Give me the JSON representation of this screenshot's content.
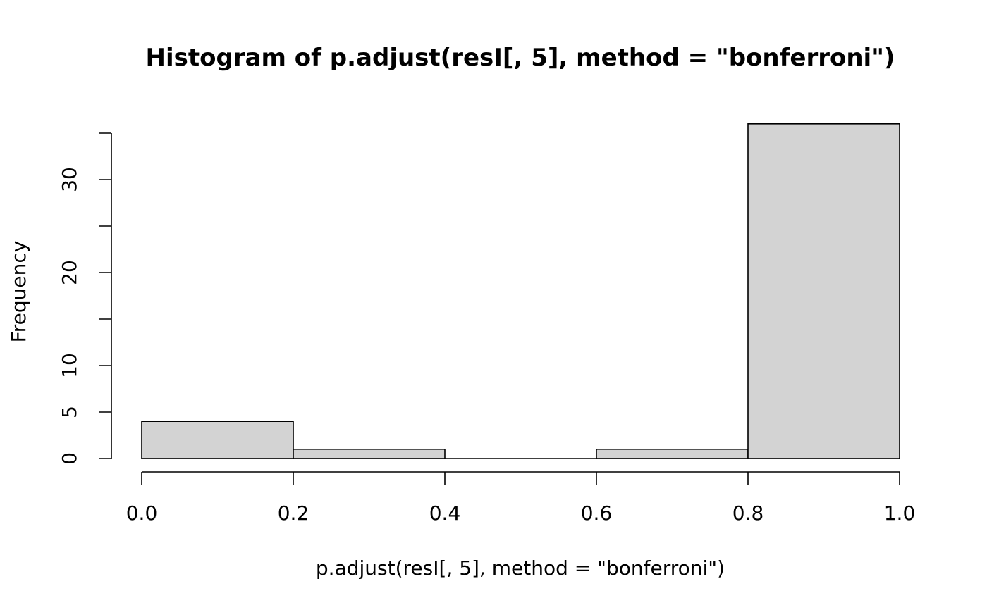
{
  "chart_data": {
    "type": "bar",
    "title": "Histogram of p.adjust(resI[, 5], method = \"bonferroni\")",
    "xlabel": "p.adjust(resI[, 5], method = \"bonferroni\")",
    "ylabel": "Frequency",
    "bins": [
      {
        "x0": 0.0,
        "x1": 0.2,
        "count": 4
      },
      {
        "x0": 0.2,
        "x1": 0.4,
        "count": 1
      },
      {
        "x0": 0.4,
        "x1": 0.6,
        "count": 0
      },
      {
        "x0": 0.6,
        "x1": 0.8,
        "count": 1
      },
      {
        "x0": 0.8,
        "x1": 1.0,
        "count": 36
      }
    ],
    "xlim": [
      0.0,
      1.0
    ],
    "ylim": [
      0,
      35
    ],
    "x_ticks": [
      "0.0",
      "0.2",
      "0.4",
      "0.6",
      "0.8",
      "1.0"
    ],
    "y_ticks": [
      "0",
      "5",
      "10",
      "20",
      "30"
    ],
    "grid": false,
    "colors": {
      "bar_fill": "#d3d3d3",
      "bar_stroke": "#000000"
    }
  }
}
